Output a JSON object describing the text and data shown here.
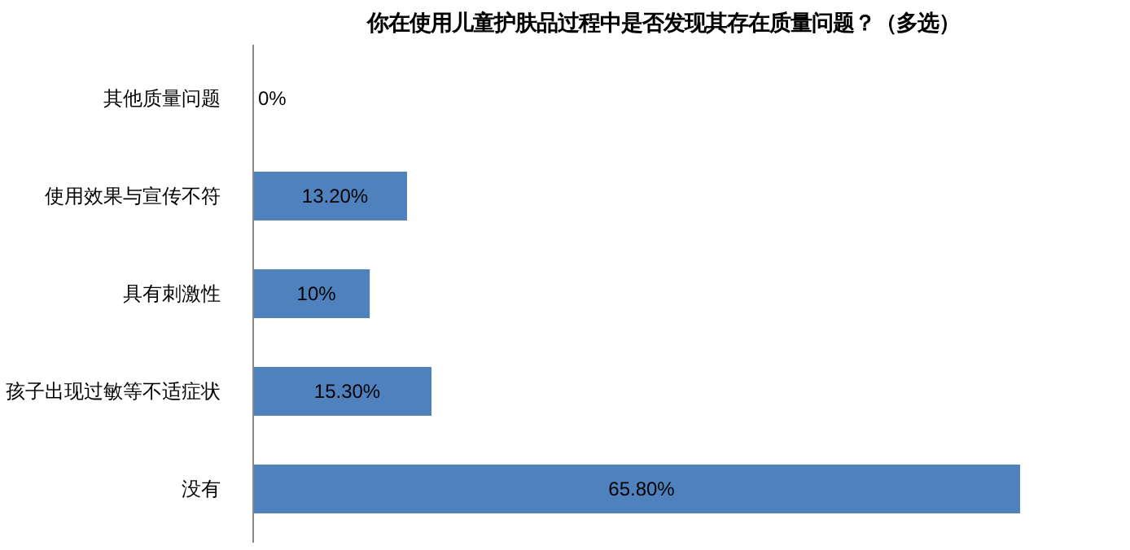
{
  "chart_data": {
    "type": "bar",
    "orientation": "horizontal",
    "title": "你在使用儿童护肤品过程中是否发现其存在质量问题？（多选）",
    "categories": [
      "其他质量问题",
      "使用效果与宣传不符",
      "具有刺激性",
      "孩子出现过敏等不适症状",
      "没有"
    ],
    "values": [
      0,
      13.2,
      10,
      15.3,
      65.8
    ],
    "value_labels": [
      "0%",
      "13.20%",
      "10%",
      "15.30%",
      "65.80%"
    ],
    "color": "#4f81bd",
    "tick_labels": "y",
    "grid": false
  }
}
